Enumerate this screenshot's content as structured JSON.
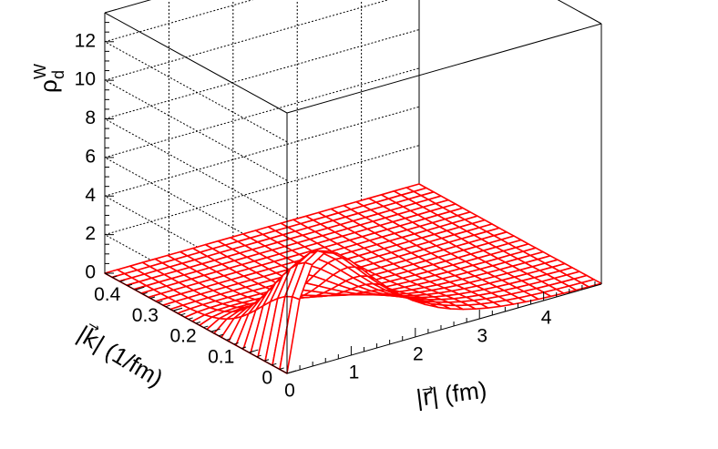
{
  "chart_data": {
    "type": "surface",
    "zlabel": "ρ",
    "zlabel_superscript": "W",
    "zlabel_subscript": "d",
    "xlabel": "|r⃗| (fm)",
    "ylabel": "|k⃗| (1/fm)",
    "x_ticks": [
      "0",
      "1",
      "2",
      "3",
      "4"
    ],
    "y_ticks": [
      "0",
      "0.1",
      "0.2",
      "0.3",
      "0.4"
    ],
    "z_ticks": [
      "0",
      "2",
      "4",
      "6",
      "8",
      "10",
      "12"
    ],
    "xlim": [
      0,
      4.9
    ],
    "ylim": [
      0,
      0.48
    ],
    "zlim": [
      0,
      13.5
    ],
    "grid": true,
    "surface_color": "#ff0000",
    "grid_size": [
      25,
      25
    ],
    "surface_model": "peak ≈ 5.7 near r ≈ 0.6 fm, k ≈ 0; decays with r (tail to ~4.7 fm) and falls off by k ≈ 0.1–0.2 fm⁻¹"
  }
}
